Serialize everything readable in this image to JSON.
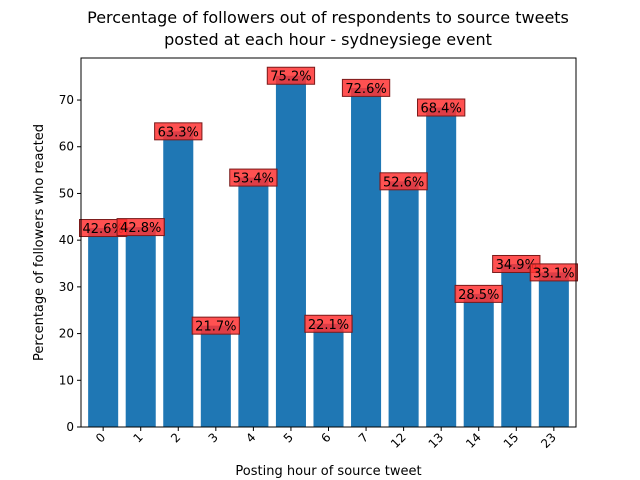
{
  "chart_data": {
    "type": "bar",
    "title_lines": [
      "Percentage of followers out of respondents to source tweets",
      "posted at each hour - sydneysiege event"
    ],
    "xlabel": "Posting hour of source tweet",
    "ylabel": "Percentage of followers who reacted",
    "categories": [
      "0",
      "1",
      "2",
      "3",
      "4",
      "5",
      "6",
      "7",
      "12",
      "13",
      "14",
      "15",
      "23"
    ],
    "values": [
      42.6,
      42.8,
      63.3,
      21.7,
      53.4,
      75.2,
      22.1,
      72.6,
      52.6,
      68.4,
      28.5,
      34.9,
      33.1
    ],
    "data_labels": [
      "42.6%",
      "42.8%",
      "63.3%",
      "21.7%",
      "53.4%",
      "75.2%",
      "22.1%",
      "72.6%",
      "52.6%",
      "68.4%",
      "28.5%",
      "34.9%",
      "33.1%"
    ],
    "ylim": [
      0,
      79
    ],
    "yticks": [
      0,
      10,
      20,
      30,
      40,
      50,
      60,
      70
    ],
    "grid": false,
    "legend": "none",
    "bar_color": "#1f77b4",
    "label_box_color": "#ff3333"
  }
}
